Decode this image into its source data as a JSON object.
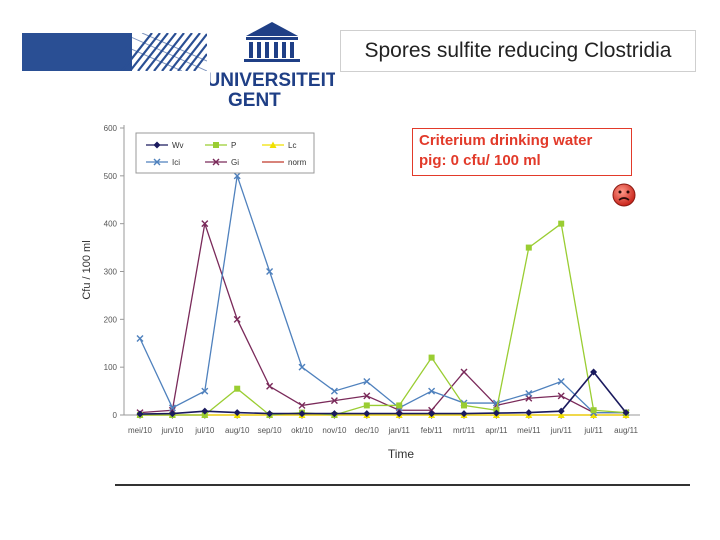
{
  "slide_title": "Spores sulfite reducing Clostridia",
  "logo": {
    "line1": "UNIVERSITEIT",
    "line2": "GENT"
  },
  "criterion": {
    "line1": "Criterium drinking water",
    "line2": "pig: 0 cfu/ 100 ml"
  },
  "colors": {
    "accent": "#2b5aa8",
    "criterion": "#e23a2a"
  },
  "chart_data": {
    "type": "line",
    "title": "",
    "xlabel": "Time",
    "ylabel": "Cfu / 100 ml",
    "ylim": [
      0,
      600
    ],
    "yticks": [
      0,
      100,
      200,
      300,
      400,
      500,
      600
    ],
    "categories": [
      "mei/10",
      "jun/10",
      "jul/10",
      "aug/10",
      "sep/10",
      "okt/10",
      "nov/10",
      "dec/10",
      "jan/11",
      "feb/11",
      "mrt/11",
      "apr/11",
      "mei/11",
      "jun/11",
      "jul/11",
      "aug/11"
    ],
    "series": [
      {
        "name": "Wv",
        "color": "#1a1a5e",
        "marker": "diamond",
        "values": [
          2,
          3,
          8,
          5,
          3,
          3,
          3,
          3,
          3,
          3,
          3,
          4,
          5,
          8,
          90,
          5
        ]
      },
      {
        "name": "P",
        "color": "#9acd32",
        "marker": "square",
        "values": [
          0,
          0,
          0,
          55,
          0,
          5,
          0,
          20,
          20,
          120,
          20,
          10,
          350,
          400,
          10,
          5
        ]
      },
      {
        "name": "Lc",
        "color": "#f0e000",
        "marker": "triangle",
        "values": [
          0,
          0,
          0,
          0,
          0,
          0,
          0,
          0,
          0,
          0,
          0,
          0,
          0,
          0,
          0,
          0
        ]
      },
      {
        "name": "Ici",
        "color": "#4f81bd",
        "marker": "x",
        "values": [
          160,
          15,
          50,
          500,
          300,
          100,
          50,
          70,
          15,
          50,
          25,
          25,
          45,
          70,
          5,
          5
        ]
      },
      {
        "name": "Gi",
        "color": "#7a2a5a",
        "marker": "x",
        "values": [
          5,
          10,
          400,
          200,
          60,
          20,
          30,
          40,
          10,
          10,
          90,
          20,
          35,
          40,
          5,
          5
        ]
      },
      {
        "name": "norm",
        "color": "#c0392b",
        "marker": "none",
        "values": [
          0,
          0,
          0,
          0,
          0,
          0,
          0,
          0,
          0,
          0,
          0,
          0,
          0,
          0,
          0,
          0
        ]
      }
    ]
  }
}
